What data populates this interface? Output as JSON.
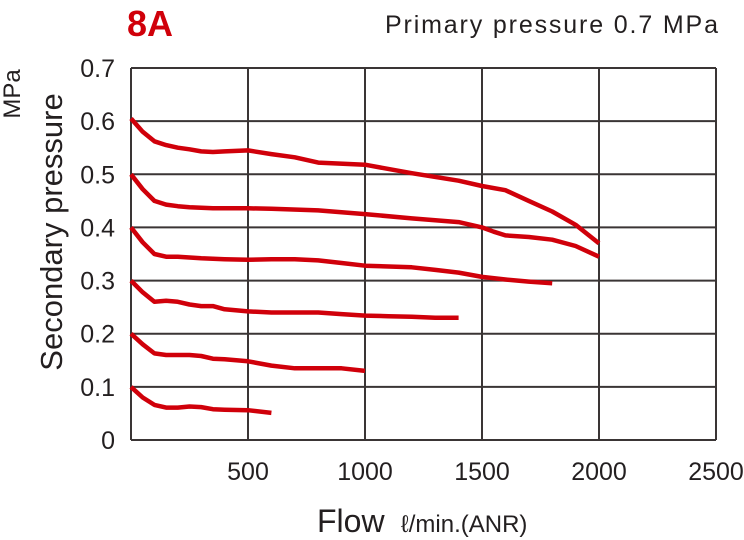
{
  "chart_data": {
    "type": "line",
    "title": "8A",
    "subtitle": "Primary pressure 0.7 MPa",
    "xlabel": "Flow",
    "xunit": "ℓ/min.(ANR)",
    "ylabel": "Secondary pressure",
    "yunit": "MPa",
    "xlim": [
      0,
      2500
    ],
    "ylim": [
      0,
      0.7
    ],
    "xticks": [
      500,
      1000,
      1500,
      2000,
      2500
    ],
    "xtick_labels": [
      "500",
      "1000",
      "1500",
      "2000",
      "2500"
    ],
    "yticks": [
      0,
      0.1,
      0.2,
      0.3,
      0.4,
      0.5,
      0.6,
      0.7
    ],
    "ytick_labels": [
      "0",
      "0.1",
      "0.2",
      "0.3",
      "0.4",
      "0.5",
      "0.6",
      "0.7"
    ],
    "grid": true,
    "colors": {
      "series": "#d0000a",
      "title": "#d0000a",
      "grid": "#3a3535"
    },
    "series": [
      {
        "x": [
          0,
          50,
          100,
          150,
          200,
          250,
          300,
          350,
          400,
          500,
          600,
          700,
          800,
          1000,
          1200,
          1400,
          1500,
          1600,
          1700,
          1800,
          1900,
          2000
        ],
        "y": [
          0.605,
          0.58,
          0.562,
          0.555,
          0.55,
          0.547,
          0.543,
          0.542,
          0.543,
          0.545,
          0.538,
          0.532,
          0.522,
          0.518,
          0.502,
          0.488,
          0.478,
          0.47,
          0.45,
          0.43,
          0.405,
          0.37
        ]
      },
      {
        "x": [
          0,
          50,
          100,
          150,
          200,
          250,
          300,
          350,
          400,
          500,
          600,
          800,
          1000,
          1200,
          1400,
          1500,
          1550,
          1600,
          1700,
          1800,
          1900,
          2000
        ],
        "y": [
          0.5,
          0.472,
          0.45,
          0.443,
          0.44,
          0.438,
          0.437,
          0.436,
          0.436,
          0.436,
          0.435,
          0.432,
          0.425,
          0.417,
          0.41,
          0.4,
          0.392,
          0.385,
          0.382,
          0.377,
          0.365,
          0.345
        ]
      },
      {
        "x": [
          0,
          50,
          100,
          150,
          200,
          300,
          400,
          500,
          600,
          700,
          800,
          900,
          1000,
          1200,
          1300,
          1400,
          1500,
          1600,
          1700,
          1800
        ],
        "y": [
          0.4,
          0.372,
          0.35,
          0.345,
          0.345,
          0.342,
          0.34,
          0.339,
          0.34,
          0.34,
          0.338,
          0.333,
          0.328,
          0.325,
          0.32,
          0.315,
          0.307,
          0.302,
          0.298,
          0.295
        ]
      },
      {
        "x": [
          0,
          50,
          100,
          150,
          200,
          250,
          300,
          350,
          400,
          500,
          600,
          700,
          800,
          900,
          1000,
          1100,
          1200,
          1300,
          1400
        ],
        "y": [
          0.3,
          0.278,
          0.26,
          0.262,
          0.26,
          0.255,
          0.252,
          0.252,
          0.246,
          0.242,
          0.24,
          0.24,
          0.24,
          0.237,
          0.234,
          0.233,
          0.232,
          0.23,
          0.23
        ]
      },
      {
        "x": [
          0,
          50,
          100,
          150,
          200,
          250,
          300,
          350,
          400,
          500,
          600,
          700,
          800,
          900,
          1000
        ],
        "y": [
          0.2,
          0.18,
          0.163,
          0.16,
          0.16,
          0.16,
          0.158,
          0.153,
          0.152,
          0.148,
          0.14,
          0.135,
          0.135,
          0.135,
          0.13
        ]
      },
      {
        "x": [
          0,
          50,
          100,
          150,
          200,
          250,
          300,
          350,
          400,
          500,
          600
        ],
        "y": [
          0.1,
          0.08,
          0.066,
          0.061,
          0.061,
          0.063,
          0.062,
          0.058,
          0.057,
          0.056,
          0.051
        ]
      }
    ]
  }
}
